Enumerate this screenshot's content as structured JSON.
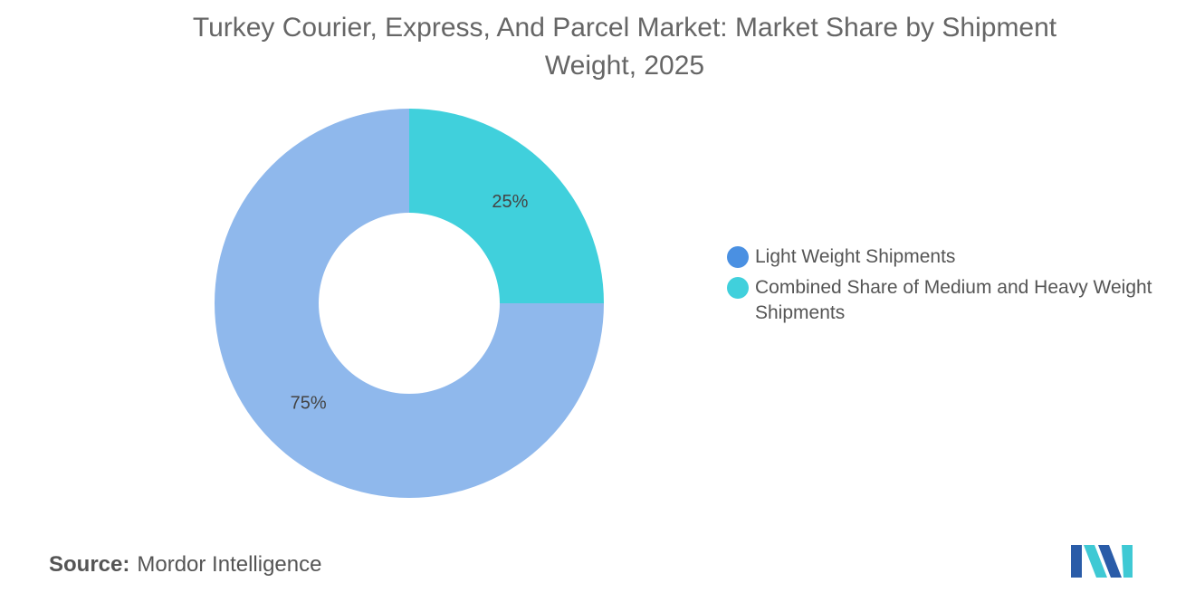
{
  "title": "Turkey Courier, Express, And Parcel Market: Market Share by Shipment Weight, 2025",
  "source": {
    "label": "Source:",
    "name": "Mordor Intelligence"
  },
  "logo": {
    "icon": "mordor-intelligence-logo",
    "colors": [
      "#2a5ca8",
      "#3fc9d4"
    ]
  },
  "chart_data": {
    "type": "pie",
    "variant": "donut",
    "title": "Turkey Courier, Express, And Parcel Market: Market Share by Shipment Weight, 2025",
    "categories": [
      "Light Weight Shipments",
      "Combined Share of Medium and Heavy Weight Shipments"
    ],
    "values": [
      75,
      25
    ],
    "data_labels": [
      "75%",
      "25%"
    ],
    "slice_colors": [
      "#8fb8ec",
      "#40d0dc"
    ],
    "legend_colors": [
      "#4a90e2",
      "#40d0dc"
    ],
    "legend_position": "right"
  }
}
